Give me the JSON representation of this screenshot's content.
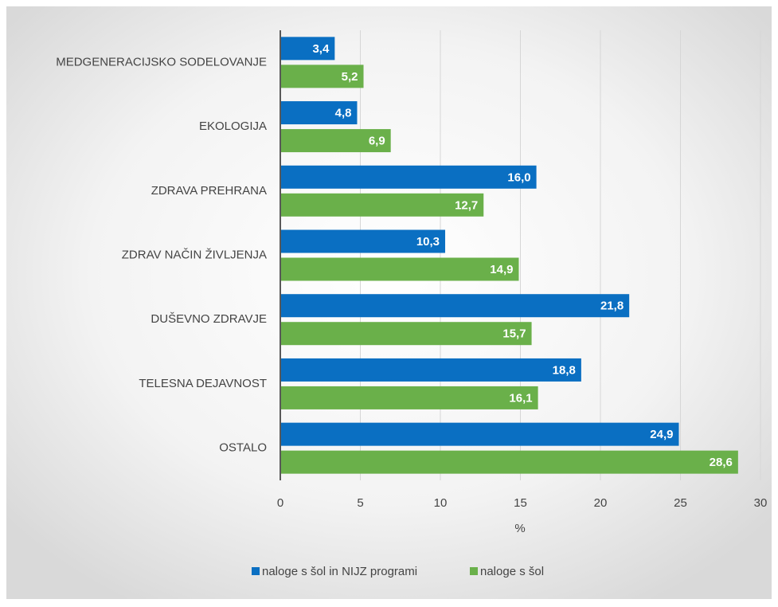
{
  "chart_data": {
    "type": "hbar",
    "categories": [
      "MEDGENERACIJSKO SODELOVANJE",
      "EKOLOGIJA",
      "ZDRAVA PREHRANA",
      "ZDRAV NAČIN ŽIVLJENJA",
      "DUŠEVNO ZDRAVJE",
      "TELESNA DEJAVNOST",
      "OSTALO"
    ],
    "series": [
      {
        "name": "naloge s šol in NIJZ programi",
        "color": "#0a6fc2",
        "values": [
          3.4,
          4.8,
          16.0,
          10.3,
          21.8,
          18.8,
          24.9
        ],
        "value_labels": [
          "3,4",
          "4,8",
          "16,0",
          "10,3",
          "21,8",
          "18,8",
          "24,9"
        ]
      },
      {
        "name": "naloge s šol",
        "color": "#6ab04a",
        "values": [
          5.2,
          6.9,
          12.7,
          14.9,
          15.7,
          16.1,
          28.6
        ],
        "value_labels": [
          "5,2",
          "6,9",
          "12,7",
          "14,9",
          "15,7",
          "16,1",
          "28,6"
        ]
      }
    ],
    "xlabel": "%",
    "xlim": [
      0,
      30
    ],
    "xticks": [
      0,
      5,
      10,
      15,
      20,
      25,
      30
    ],
    "grid": true,
    "legend": "bottom"
  }
}
